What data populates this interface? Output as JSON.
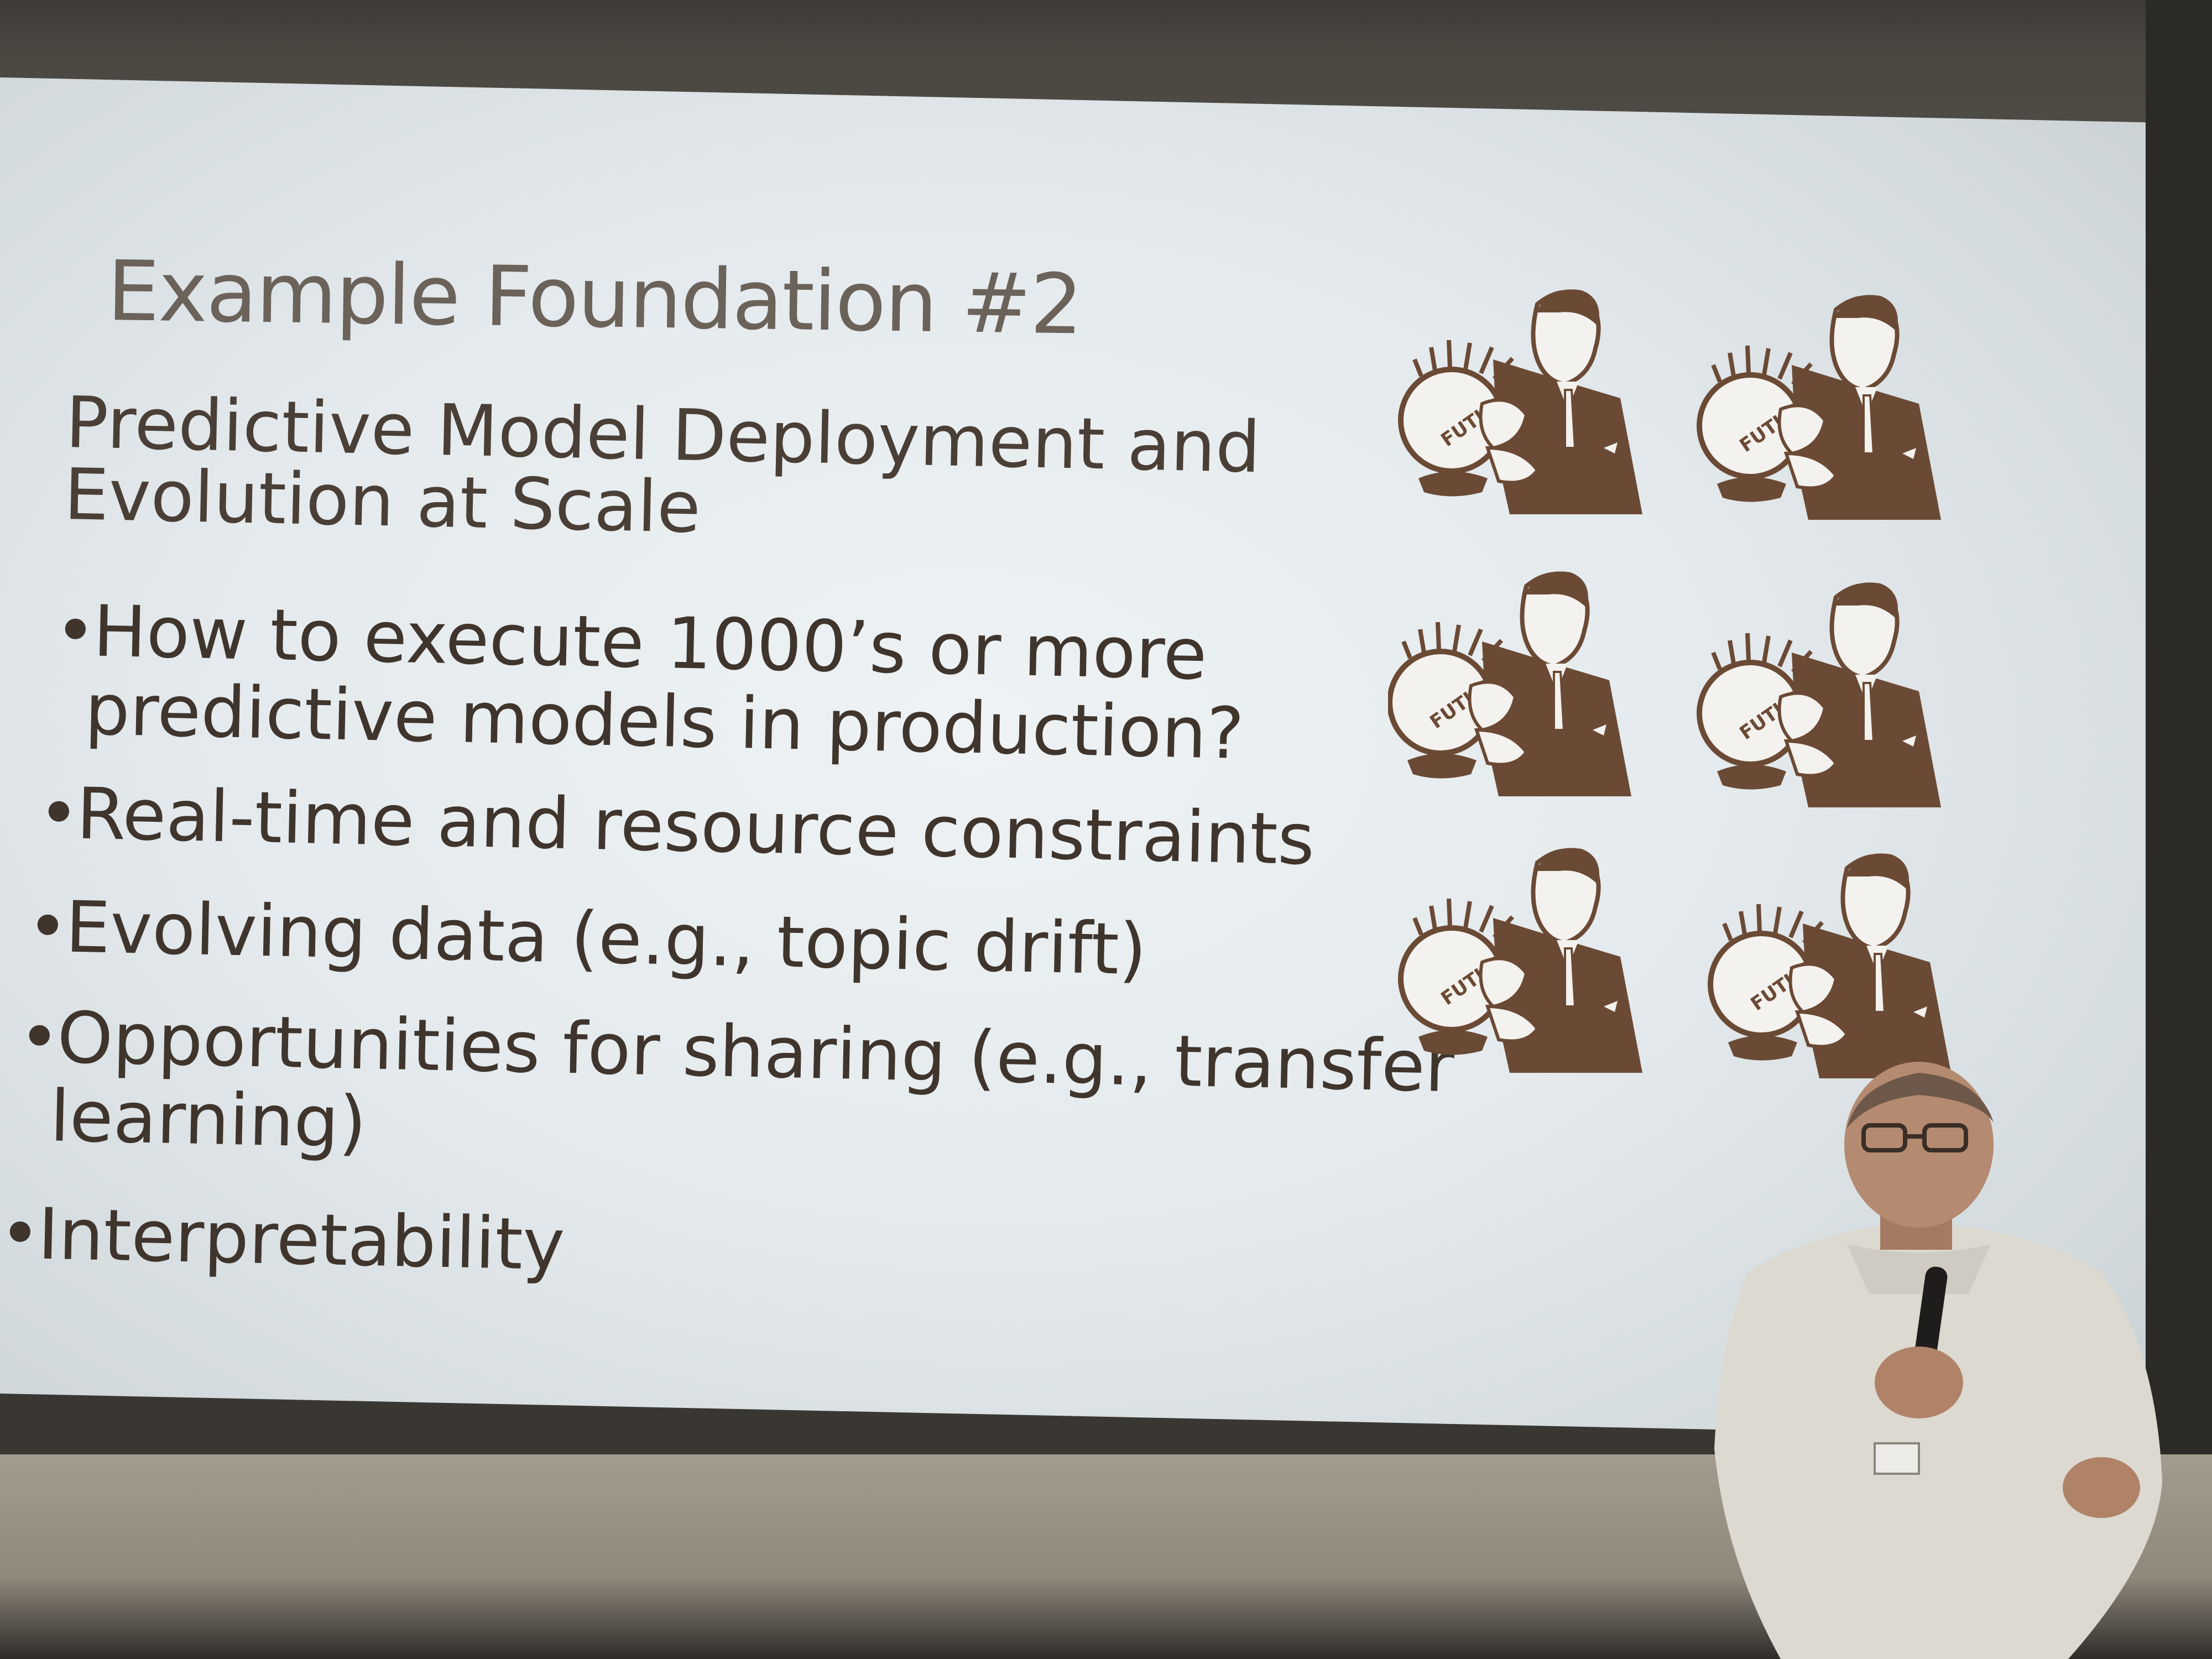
{
  "slide": {
    "title": "Example Foundation #2",
    "lead_line1": "Predictive Model Deployment and",
    "lead_line2": "Evolution at Scale",
    "bullets": [
      {
        "line1": "How to execute 1000’s or more",
        "line2": "predictive models in production?"
      },
      {
        "line1": "Real-time and resource constraints"
      },
      {
        "line1": "Evolving data (e.g., topic drift)"
      },
      {
        "line1": "Opportunities for sharing (e.g., transfer",
        "line2": "learning)"
      },
      {
        "line1": "Interpretability"
      }
    ],
    "bullet_glyph": "•"
  },
  "clipart": {
    "icon": "fortune-teller-crystal-ball-icon",
    "globe_label": "FUTURE",
    "count": 6,
    "ink_color": "#6b4a35"
  },
  "scene": {
    "speaker": "presenter-with-microphone",
    "screen_color": "#e6ecef",
    "text_color": "#4a3f36"
  }
}
